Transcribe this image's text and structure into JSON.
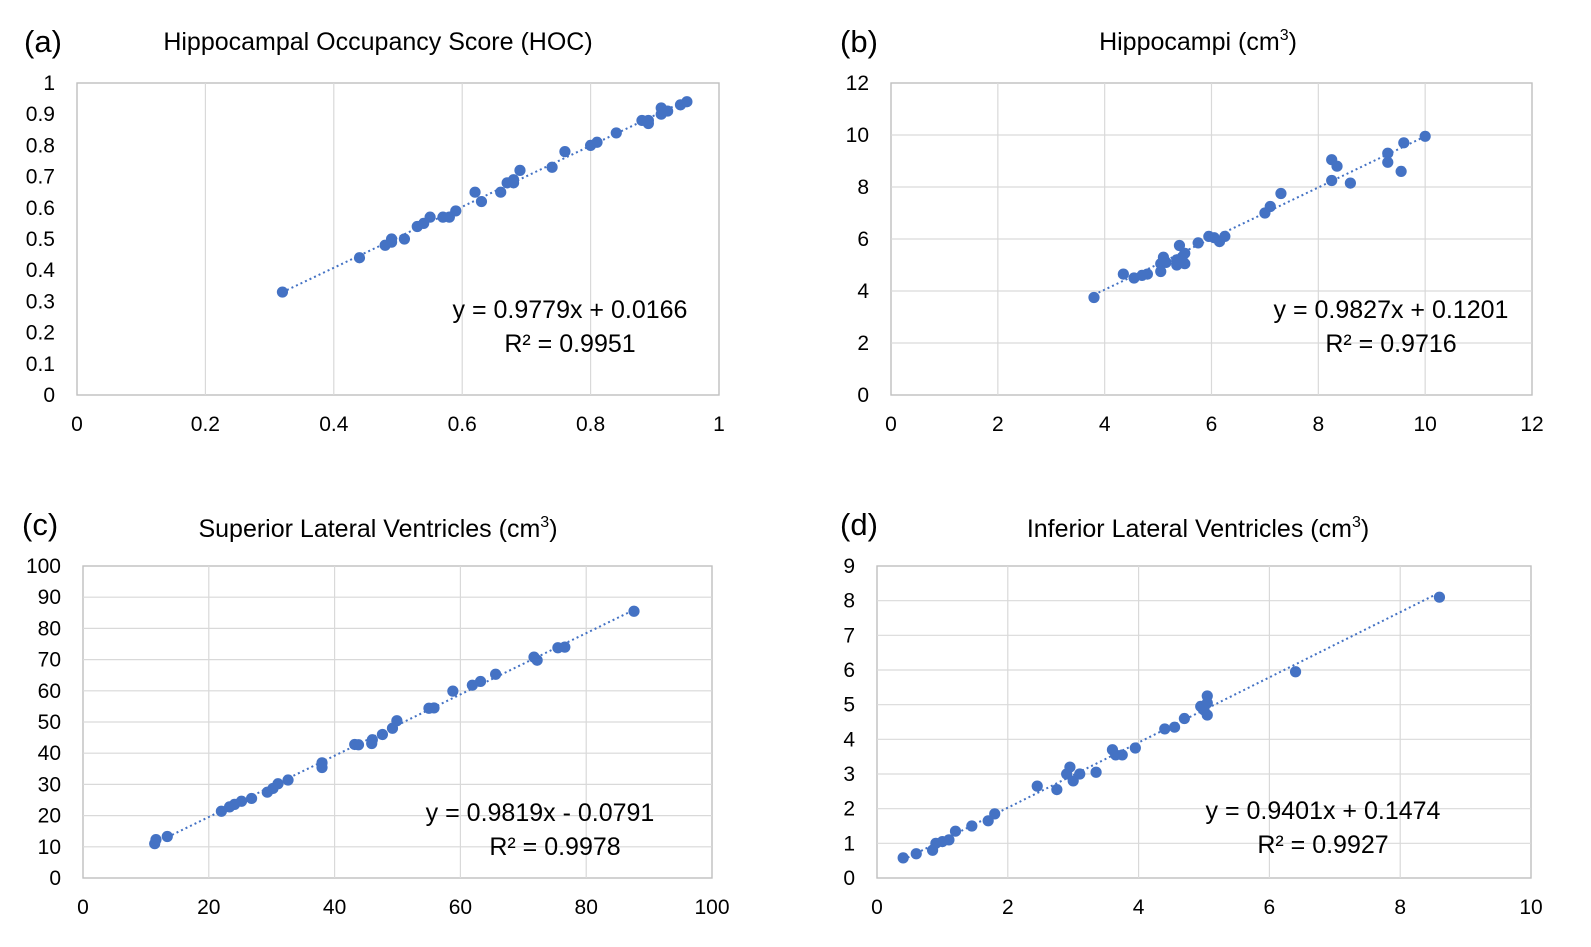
{
  "chart_data": [
    {
      "id": "a",
      "type": "scatter",
      "panel_label": "(a)",
      "title": "Hippocampal Occupancy Score (HOC)",
      "title_sup": "",
      "title_end": "",
      "xlim": [
        0,
        1
      ],
      "ylim": [
        0,
        1
      ],
      "xticks": [
        "0",
        "0.2",
        "0.4",
        "0.6",
        "0.8",
        "1"
      ],
      "yticks": [
        "0",
        "0.1",
        "0.2",
        "0.3",
        "0.4",
        "0.5",
        "0.6",
        "0.7",
        "0.8",
        "0.9",
        "1"
      ],
      "grid": "vertical",
      "equation": "y = 0.9779x + 0.0166",
      "r_squared": "R² = 0.9951",
      "trendline": {
        "slope": 0.9779,
        "intercept": 0.0166,
        "x_range": [
          0.32,
          0.95
        ]
      },
      "marker_color": "#4472c4",
      "points": [
        [
          0.32,
          0.33
        ],
        [
          0.44,
          0.44
        ],
        [
          0.48,
          0.48
        ],
        [
          0.49,
          0.5
        ],
        [
          0.49,
          0.49
        ],
        [
          0.51,
          0.5
        ],
        [
          0.53,
          0.54
        ],
        [
          0.54,
          0.55
        ],
        [
          0.55,
          0.57
        ],
        [
          0.57,
          0.57
        ],
        [
          0.58,
          0.57
        ],
        [
          0.59,
          0.59
        ],
        [
          0.62,
          0.65
        ],
        [
          0.63,
          0.62
        ],
        [
          0.66,
          0.65
        ],
        [
          0.67,
          0.68
        ],
        [
          0.68,
          0.69
        ],
        [
          0.68,
          0.68
        ],
        [
          0.69,
          0.72
        ],
        [
          0.74,
          0.73
        ],
        [
          0.76,
          0.78
        ],
        [
          0.8,
          0.8
        ],
        [
          0.81,
          0.81
        ],
        [
          0.84,
          0.84
        ],
        [
          0.88,
          0.88
        ],
        [
          0.89,
          0.87
        ],
        [
          0.89,
          0.88
        ],
        [
          0.91,
          0.92
        ],
        [
          0.91,
          0.9
        ],
        [
          0.92,
          0.91
        ],
        [
          0.94,
          0.93
        ],
        [
          0.95,
          0.94
        ]
      ]
    },
    {
      "id": "b",
      "type": "scatter",
      "panel_label": "(b)",
      "title": "Hippocampi (cm",
      "title_sup": "3",
      "title_end": ")",
      "xlim": [
        0,
        12
      ],
      "ylim": [
        0,
        12
      ],
      "xticks": [
        "0",
        "2",
        "4",
        "6",
        "8",
        "10",
        "12"
      ],
      "yticks": [
        "0",
        "2",
        "4",
        "6",
        "8",
        "10",
        "12"
      ],
      "grid": "both",
      "equation": "y = 0.9827x + 0.1201",
      "r_squared": "R² = 0.9716",
      "trendline": {
        "slope": 0.9827,
        "intercept": 0.1201,
        "x_range": [
          3.8,
          10.0
        ]
      },
      "marker_color": "#4472c4",
      "points": [
        [
          3.8,
          3.75
        ],
        [
          4.35,
          4.65
        ],
        [
          4.55,
          4.5
        ],
        [
          4.7,
          4.6
        ],
        [
          4.8,
          4.65
        ],
        [
          5.05,
          4.75
        ],
        [
          5.05,
          5.05
        ],
        [
          5.1,
          5.3
        ],
        [
          5.15,
          5.1
        ],
        [
          5.35,
          5.0
        ],
        [
          5.35,
          5.2
        ],
        [
          5.4,
          5.75
        ],
        [
          5.45,
          5.3
        ],
        [
          5.5,
          5.05
        ],
        [
          5.5,
          5.45
        ],
        [
          5.75,
          5.85
        ],
        [
          5.95,
          6.1
        ],
        [
          6.05,
          6.05
        ],
        [
          6.15,
          5.9
        ],
        [
          6.25,
          6.1
        ],
        [
          7.0,
          7.0
        ],
        [
          7.1,
          7.25
        ],
        [
          7.3,
          7.75
        ],
        [
          8.25,
          9.05
        ],
        [
          8.25,
          8.25
        ],
        [
          8.35,
          8.8
        ],
        [
          8.6,
          8.15
        ],
        [
          9.3,
          9.3
        ],
        [
          9.3,
          8.95
        ],
        [
          9.55,
          8.6
        ],
        [
          9.6,
          9.7
        ],
        [
          10.0,
          9.95
        ]
      ]
    },
    {
      "id": "c",
      "type": "scatter",
      "panel_label": "(c)",
      "title": "Superior Lateral Ventricles (cm",
      "title_sup": "3",
      "title_end": ")",
      "xlim": [
        0,
        100
      ],
      "ylim": [
        0,
        100
      ],
      "xticks": [
        "0",
        "20",
        "40",
        "60",
        "80",
        "100"
      ],
      "yticks": [
        "0",
        "10",
        "20",
        "30",
        "40",
        "50",
        "60",
        "70",
        "80",
        "90",
        "100"
      ],
      "grid": "both",
      "equation": "y = 0.9819x - 0.0791",
      "r_squared": "R² = 0.9978",
      "trendline": {
        "slope": 0.9819,
        "intercept": -0.0791,
        "x_range": [
          11.3,
          87.6
        ]
      },
      "marker_color": "#4472c4",
      "points": [
        [
          11.4,
          11.0
        ],
        [
          11.6,
          12.3
        ],
        [
          13.4,
          13.3
        ],
        [
          22.0,
          21.4
        ],
        [
          23.3,
          22.8
        ],
        [
          24.1,
          23.6
        ],
        [
          25.2,
          24.6
        ],
        [
          26.8,
          25.5
        ],
        [
          29.3,
          27.5
        ],
        [
          30.2,
          28.7
        ],
        [
          31.0,
          30.2
        ],
        [
          32.6,
          31.4
        ],
        [
          38.0,
          35.4
        ],
        [
          38.0,
          36.9
        ],
        [
          43.2,
          42.8
        ],
        [
          43.8,
          42.7
        ],
        [
          45.9,
          43.1
        ],
        [
          46.0,
          44.3
        ],
        [
          47.6,
          46.0
        ],
        [
          49.2,
          48.0
        ],
        [
          49.9,
          50.4
        ],
        [
          55.0,
          54.4
        ],
        [
          55.8,
          54.5
        ],
        [
          58.8,
          59.9
        ],
        [
          61.9,
          61.8
        ],
        [
          63.2,
          63.0
        ],
        [
          65.6,
          65.3
        ],
        [
          71.7,
          70.8
        ],
        [
          72.2,
          69.8
        ],
        [
          75.5,
          73.8
        ],
        [
          76.6,
          74.0
        ],
        [
          87.6,
          85.5
        ]
      ]
    },
    {
      "id": "d",
      "type": "scatter",
      "panel_label": "(d)",
      "title": "Inferior Lateral Ventricles (cm",
      "title_sup": "3",
      "title_end": ")",
      "xlim": [
        0,
        10
      ],
      "ylim": [
        0,
        9
      ],
      "xticks": [
        "0",
        "2",
        "4",
        "6",
        "8",
        "10"
      ],
      "yticks": [
        "0",
        "1",
        "2",
        "3",
        "4",
        "5",
        "6",
        "7",
        "8",
        "9"
      ],
      "grid": "both",
      "equation": "y = 0.9401x + 0.1474",
      "r_squared": "R² = 0.9927",
      "trendline": {
        "slope": 0.9401,
        "intercept": 0.1474,
        "x_range": [
          0.4,
          8.6
        ]
      },
      "marker_color": "#4472c4",
      "points": [
        [
          0.4,
          0.58
        ],
        [
          0.6,
          0.7
        ],
        [
          0.85,
          0.8
        ],
        [
          0.9,
          1.0
        ],
        [
          1.0,
          1.05
        ],
        [
          1.1,
          1.1
        ],
        [
          1.2,
          1.35
        ],
        [
          1.45,
          1.5
        ],
        [
          1.7,
          1.65
        ],
        [
          1.8,
          1.85
        ],
        [
          2.45,
          2.65
        ],
        [
          2.75,
          2.55
        ],
        [
          2.9,
          3.0
        ],
        [
          2.95,
          3.2
        ],
        [
          3.0,
          2.8
        ],
        [
          3.1,
          3.0
        ],
        [
          3.35,
          3.05
        ],
        [
          3.6,
          3.7
        ],
        [
          3.65,
          3.55
        ],
        [
          3.75,
          3.55
        ],
        [
          3.95,
          3.75
        ],
        [
          4.4,
          4.3
        ],
        [
          4.55,
          4.35
        ],
        [
          4.7,
          4.6
        ],
        [
          4.95,
          4.95
        ],
        [
          5.0,
          4.85
        ],
        [
          5.05,
          4.7
        ],
        [
          5.05,
          5.05
        ],
        [
          5.05,
          5.25
        ],
        [
          6.4,
          5.95
        ],
        [
          8.6,
          8.1
        ]
      ]
    }
  ]
}
